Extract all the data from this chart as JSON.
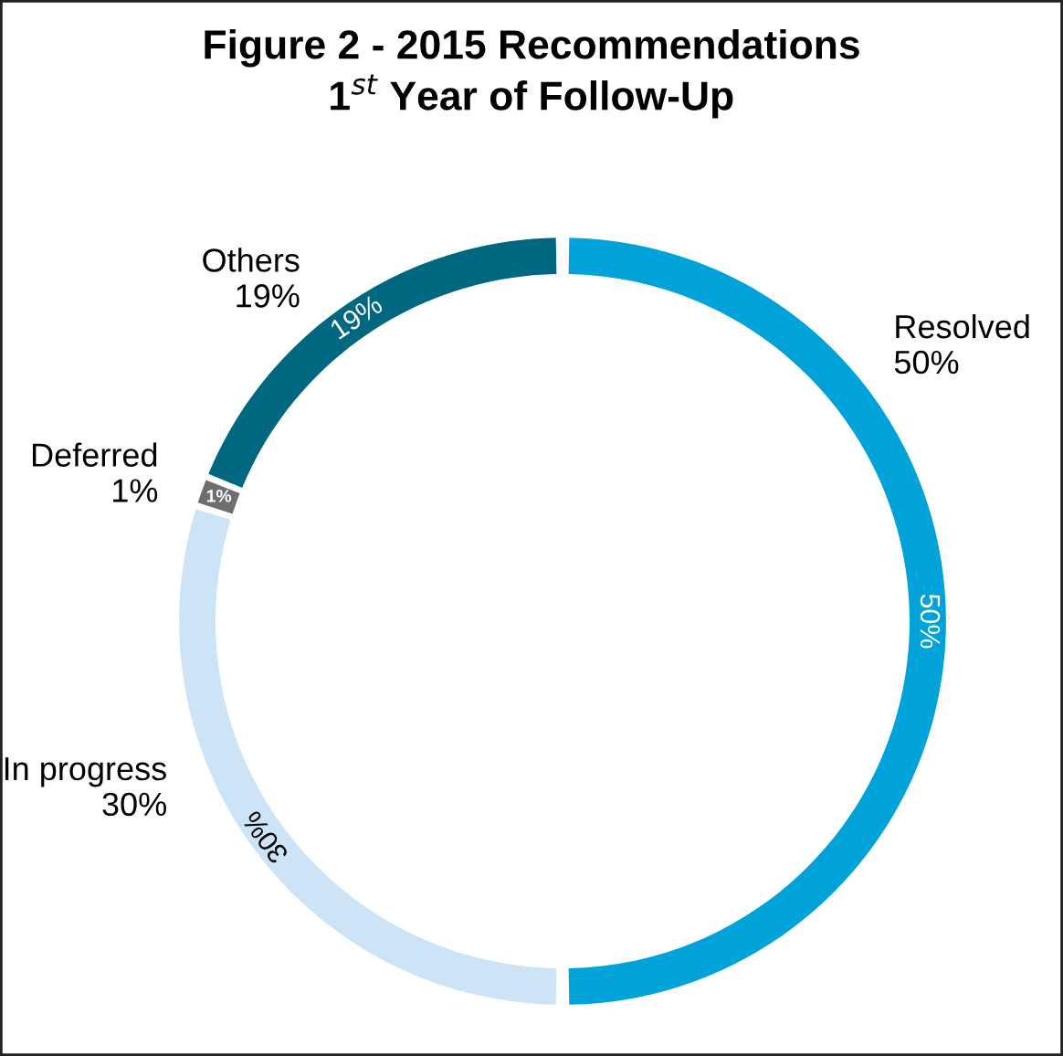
{
  "chart_data": {
    "type": "donut",
    "title": "Figure 2 - 2015 Recommendations\n1$^{st}$ Year of Follow-Up",
    "categories": [
      "Resolved",
      "In progress",
      "Deferred",
      "Others"
    ],
    "values": [
      50,
      30,
      1,
      19
    ],
    "colors": [
      "#00a3d9",
      "#cde4f6",
      "#6d6e70",
      "#006780"
    ],
    "value_labels": [
      "50%",
      "30%",
      "1%",
      "19%"
    ]
  }
}
